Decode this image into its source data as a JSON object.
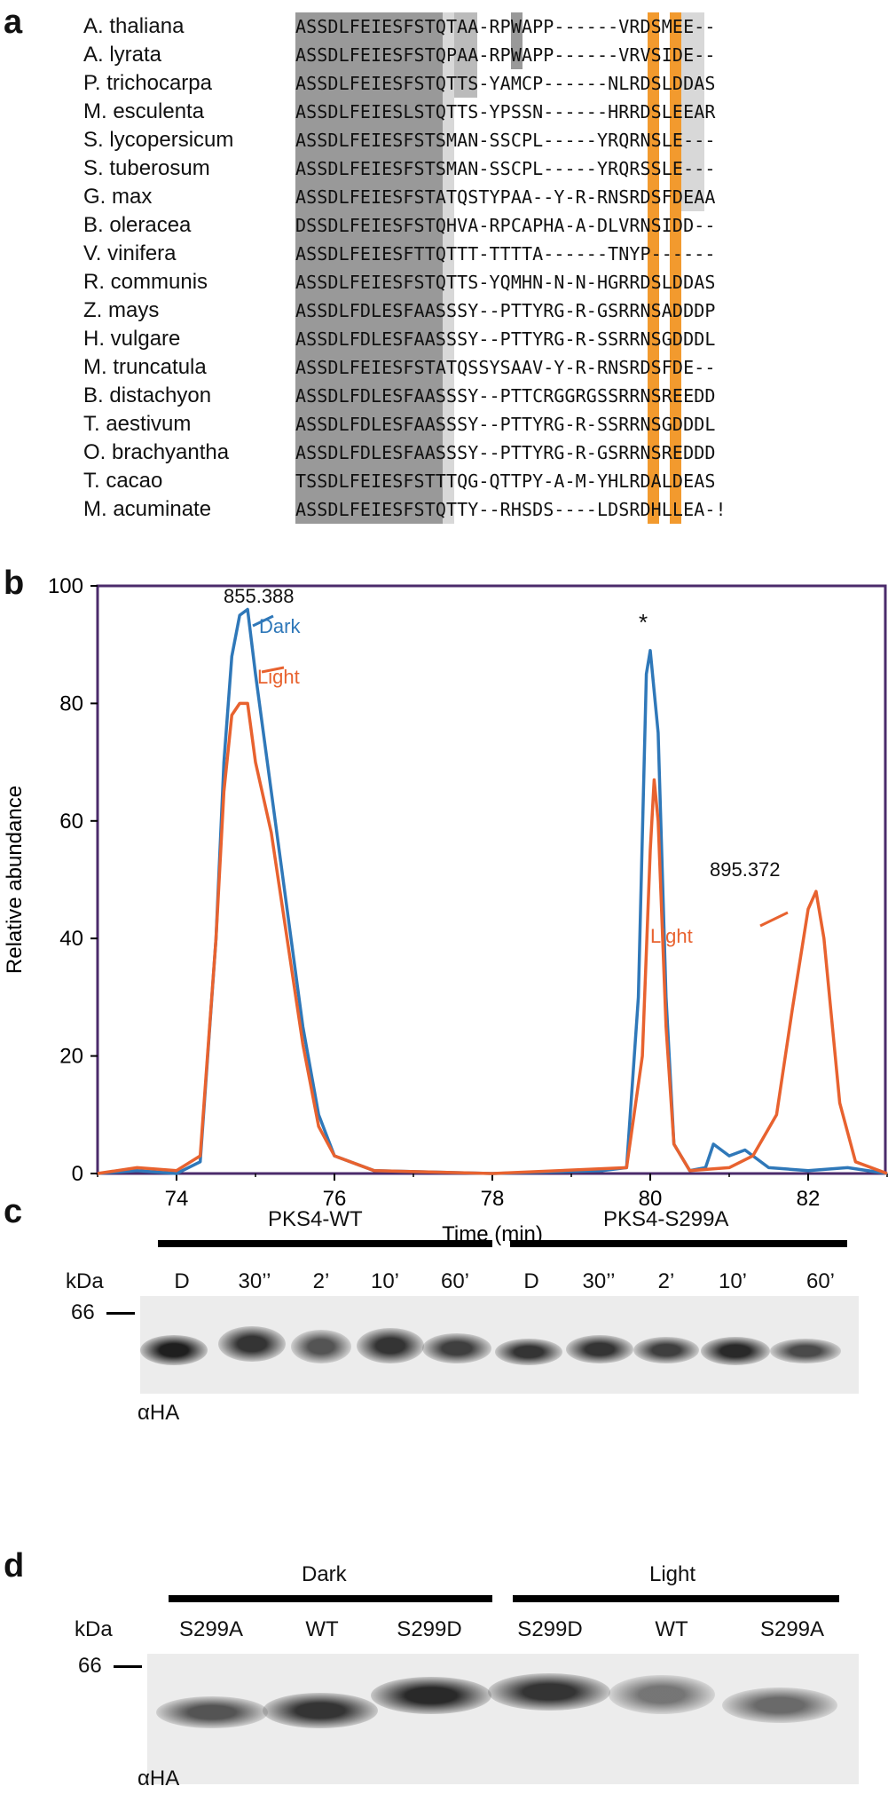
{
  "panels": {
    "a": "a",
    "b": "b",
    "c": "c",
    "d": "d"
  },
  "alignment": {
    "rows": [
      {
        "species": "A. thaliana",
        "sequence": "ASSDLFEIESFSTQTAA-RPWAPP------VRDSMEE--"
      },
      {
        "species": "A. lyrata",
        "sequence": "ASSDLFEIESFSTQPAA-RPWAPP------VRVSIDE--"
      },
      {
        "species": "P. trichocarpa",
        "sequence": "ASSDLFEIESFSTQTTS-YAMCP------NLRDSLDDAS"
      },
      {
        "species": "M. esculenta",
        "sequence": "ASSDLFEIESLSTQTTS-YPSSN------HRRDSLEEAR"
      },
      {
        "species": "S. lycopersicum",
        "sequence": "ASSDLFEIESFSTSMAN-SSCPL-----YRQRNSLE---"
      },
      {
        "species": "S. tuberosum",
        "sequence": "ASSDLFEIESFSTSMAN-SSCPL-----YRQRSSLE---"
      },
      {
        "species": "G. max",
        "sequence": "ASSDLFEIESFSTATQSTYPAA--Y-R-RNSRDSFDEAA"
      },
      {
        "species": "B. oleracea",
        "sequence": "DSSDLFEIESFSTQHVA-RPCAPHA-A-DLVRNSIDD--"
      },
      {
        "species": "V. vinifera",
        "sequence": "ASSDLFEIESFTTQTTT-TTTTA------TNYP------"
      },
      {
        "species": "R. communis",
        "sequence": "ASSDLFEIESFSTQTTS-YQMHN-N-N-HGRRDSLDDAS"
      },
      {
        "species": "Z. mays",
        "sequence": "ASSDLFDLESFAASSSY--PTTYRG-R-GSRRNSADDDP"
      },
      {
        "species": "H. vulgare",
        "sequence": "ASSDLFDLESFAASSSY--PTTYRG-R-SSRRNSGDDDL"
      },
      {
        "species": "M. truncatula",
        "sequence": "ASSDLFEIESFSTATQSSYSAAV-Y-R-RNSRDSFDE--"
      },
      {
        "species": "B. distachyon",
        "sequence": "ASSDLFDLESFAASSSY--PTTCRGGRGSSRRNSREEDD"
      },
      {
        "species": "T. aestivum",
        "sequence": "ASSDLFDLESFAASSSY--PTTYRG-R-SSRRNSGDDDL"
      },
      {
        "species": "O. brachyantha",
        "sequence": "ASSDLFDLESFAASSSY--PTTYRG-R-GSRRNSREDDD"
      },
      {
        "species": "T. cacao",
        "sequence": "TSSDLFEIESFSTTTQG-QTTPY-A-M-YHLRDALDEAS"
      },
      {
        "species": "M. acuminate",
        "sequence": "ASSDLFEIESFSTQTTY--RHSDS----LDSRDHLLEA-!"
      }
    ],
    "highlight_color": "#f29a2e"
  },
  "chart_data": {
    "type": "line",
    "title": "",
    "xlabel": "Time (min)",
    "ylabel": "Relative abundance",
    "xlim": [
      73,
      83
    ],
    "ylim": [
      0,
      100
    ],
    "xticks": [
      "74",
      "76",
      "78",
      "80",
      "82"
    ],
    "yticks": [
      "0",
      "20",
      "40",
      "60",
      "80",
      "100"
    ],
    "series": [
      {
        "name": "Dark",
        "color": "#2f78b9",
        "x": [
          73,
          73.5,
          74,
          74.3,
          74.5,
          74.6,
          74.7,
          74.8,
          74.9,
          75.0,
          75.2,
          75.4,
          75.6,
          75.8,
          76.0,
          76.5,
          78,
          79.4,
          79.7,
          79.85,
          79.95,
          80.0,
          80.1,
          80.2,
          80.3,
          80.5,
          80.7,
          80.8,
          81.0,
          81.2,
          81.5,
          82,
          82.5,
          83
        ],
        "y": [
          0,
          0.5,
          0,
          2,
          40,
          70,
          88,
          95,
          96,
          85,
          65,
          45,
          25,
          10,
          3,
          0.5,
          0,
          0.5,
          1,
          30,
          85,
          89,
          75,
          30,
          5,
          0.5,
          1,
          5,
          3,
          4,
          1,
          0.5,
          1,
          0
        ]
      },
      {
        "name": "Light",
        "color": "#e8622f",
        "x": [
          73,
          73.5,
          74,
          74.3,
          74.5,
          74.6,
          74.7,
          74.8,
          74.9,
          75.0,
          75.2,
          75.4,
          75.6,
          75.8,
          76.0,
          76.5,
          78,
          79.7,
          79.9,
          80.0,
          80.05,
          80.1,
          80.2,
          80.3,
          80.5,
          81,
          81.3,
          81.6,
          81.8,
          82.0,
          82.1,
          82.2,
          82.4,
          82.6,
          83
        ],
        "y": [
          0,
          1,
          0.5,
          3,
          40,
          65,
          78,
          80,
          80,
          70,
          58,
          40,
          22,
          8,
          3,
          0.5,
          0,
          1,
          20,
          55,
          67,
          60,
          25,
          5,
          0.5,
          1,
          3,
          10,
          28,
          45,
          48,
          40,
          12,
          2,
          0
        ]
      }
    ],
    "annotations": [
      {
        "text": "855.388"
      },
      {
        "text": "Dark"
      },
      {
        "text": "Light"
      },
      {
        "text": "*"
      },
      {
        "text": "895.372"
      },
      {
        "text": "Light"
      }
    ]
  },
  "blot_c": {
    "groups": [
      "PKS4-WT",
      "PKS4-S299A"
    ],
    "kda_label": "kDa",
    "marker": "66",
    "lanes": [
      "D",
      "30’’",
      "2’",
      "10’",
      "60’",
      "D",
      "30’’",
      "2’",
      "10’",
      "60’"
    ],
    "antibody": "αHA"
  },
  "blot_d": {
    "groups": [
      "Dark",
      "Light"
    ],
    "kda_label": "kDa",
    "marker": "66",
    "lanes": [
      "S299A",
      "WT",
      "S299D",
      "S299D",
      "WT",
      "S299A"
    ],
    "antibody": "αHA"
  }
}
